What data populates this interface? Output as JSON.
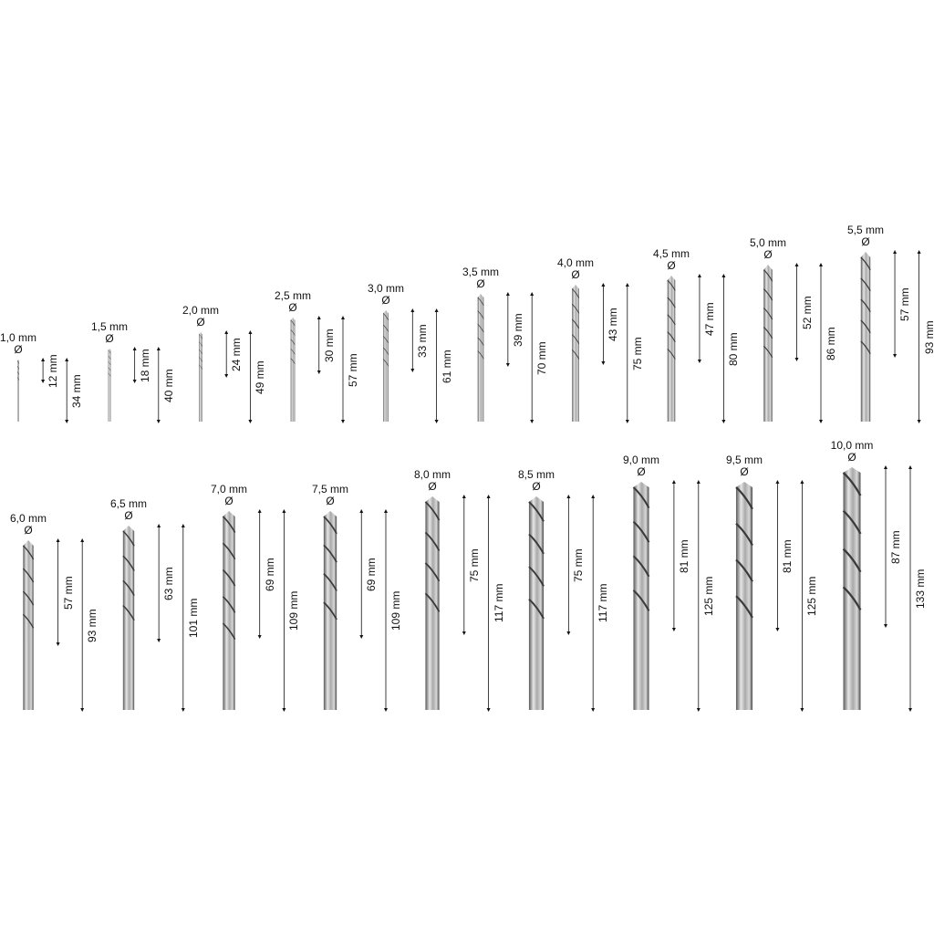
{
  "diameter_symbol": "Ø",
  "colors": {
    "steel_light": "#e6e6e6",
    "steel_mid": "#a9a9a9",
    "steel_dark": "#4a4a4a",
    "text": "#111111"
  },
  "drill_bits": [
    {
      "diameter": "1,0 mm",
      "flute_length": "12 mm",
      "total_length": "34 mm",
      "diameter_mm": 1.0,
      "flute_mm": 12,
      "total_mm": 34
    },
    {
      "diameter": "1,5 mm",
      "flute_length": "18 mm",
      "total_length": "40 mm",
      "diameter_mm": 1.5,
      "flute_mm": 18,
      "total_mm": 40
    },
    {
      "diameter": "2,0 mm",
      "flute_length": "24 mm",
      "total_length": "49 mm",
      "diameter_mm": 2.0,
      "flute_mm": 24,
      "total_mm": 49
    },
    {
      "diameter": "2,5 mm",
      "flute_length": "30 mm",
      "total_length": "57 mm",
      "diameter_mm": 2.5,
      "flute_mm": 30,
      "total_mm": 57
    },
    {
      "diameter": "3,0 mm",
      "flute_length": "33 mm",
      "total_length": "61 mm",
      "diameter_mm": 3.0,
      "flute_mm": 33,
      "total_mm": 61
    },
    {
      "diameter": "3,5 mm",
      "flute_length": "39 mm",
      "total_length": "70 mm",
      "diameter_mm": 3.5,
      "flute_mm": 39,
      "total_mm": 70
    },
    {
      "diameter": "4,0 mm",
      "flute_length": "43 mm",
      "total_length": "75 mm",
      "diameter_mm": 4.0,
      "flute_mm": 43,
      "total_mm": 75
    },
    {
      "diameter": "4,5 mm",
      "flute_length": "47 mm",
      "total_length": "80 mm",
      "diameter_mm": 4.5,
      "flute_mm": 47,
      "total_mm": 80
    },
    {
      "diameter": "5,0 mm",
      "flute_length": "52 mm",
      "total_length": "86 mm",
      "diameter_mm": 5.0,
      "flute_mm": 52,
      "total_mm": 86
    },
    {
      "diameter": "5,5 mm",
      "flute_length": "57 mm",
      "total_length": "93 mm",
      "diameter_mm": 5.5,
      "flute_mm": 57,
      "total_mm": 93
    },
    {
      "diameter": "6,0 mm",
      "flute_length": "57 mm",
      "total_length": "93 mm",
      "diameter_mm": 6.0,
      "flute_mm": 57,
      "total_mm": 93
    },
    {
      "diameter": "6,5 mm",
      "flute_length": "63 mm",
      "total_length": "101 mm",
      "diameter_mm": 6.5,
      "flute_mm": 63,
      "total_mm": 101
    },
    {
      "diameter": "7,0 mm",
      "flute_length": "69 mm",
      "total_length": "109 mm",
      "diameter_mm": 7.0,
      "flute_mm": 69,
      "total_mm": 109
    },
    {
      "diameter": "7,5 mm",
      "flute_length": "69 mm",
      "total_length": "109 mm",
      "diameter_mm": 7.5,
      "flute_mm": 69,
      "total_mm": 109
    },
    {
      "diameter": "8,0 mm",
      "flute_length": "75 mm",
      "total_length": "117 mm",
      "diameter_mm": 8.0,
      "flute_mm": 75,
      "total_mm": 117
    },
    {
      "diameter": "8,5 mm",
      "flute_length": "75 mm",
      "total_length": "117 mm",
      "diameter_mm": 8.5,
      "flute_mm": 75,
      "total_mm": 117
    },
    {
      "diameter": "9,0 mm",
      "flute_length": "81 mm",
      "total_length": "125 mm",
      "diameter_mm": 9.0,
      "flute_mm": 81,
      "total_mm": 125
    },
    {
      "diameter": "9,5 mm",
      "flute_length": "81 mm",
      "total_length": "125 mm",
      "diameter_mm": 9.5,
      "flute_mm": 81,
      "total_mm": 125
    },
    {
      "diameter": "10,0 mm",
      "flute_length": "87 mm",
      "total_length": "133 mm",
      "diameter_mm": 10.0,
      "flute_mm": 87,
      "total_mm": 133
    }
  ]
}
